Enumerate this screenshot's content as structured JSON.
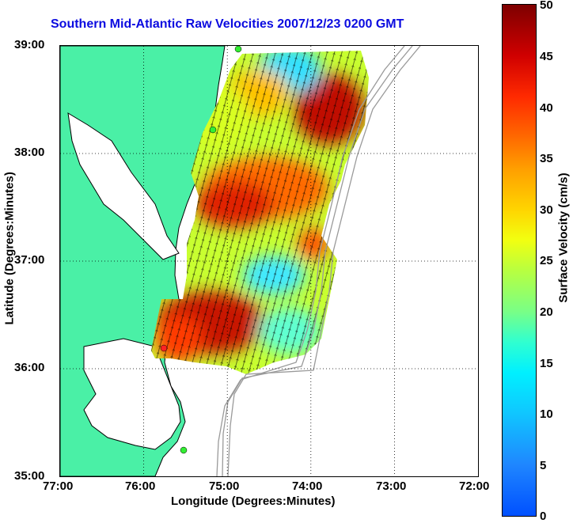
{
  "title": "Southern Mid-Atlantic Raw Velocities 2007/12/23 0200 GMT",
  "x_axis": {
    "label": "Longitude (Degrees:Minutes)",
    "ticks": [
      "77:00",
      "76:00",
      "75:00",
      "74:00",
      "73:00",
      "72:00"
    ]
  },
  "y_axis": {
    "label": "Latitude (Degrees:Minutes)",
    "ticks": [
      "39:00",
      "38:00",
      "37:00",
      "36:00",
      "35:00"
    ]
  },
  "colorbar": {
    "label": "Surface Velocity (cm/s)",
    "ticks": [
      "50",
      "45",
      "40",
      "35",
      "30",
      "25",
      "20",
      "15",
      "10",
      "5",
      "0"
    ],
    "range": [
      0,
      50
    ]
  },
  "colors": {
    "land": "#4af0a6",
    "coastline": "#000000",
    "bathymetry": "#9a9a9a",
    "stations": "#33ee33",
    "station_highlight": "#ff2222",
    "gridlines": "#000000"
  },
  "map": {
    "lon_range": [
      -77,
      -72
    ],
    "lat_range": [
      35,
      39
    ],
    "grid": "dotted",
    "station_markers": 4
  }
}
